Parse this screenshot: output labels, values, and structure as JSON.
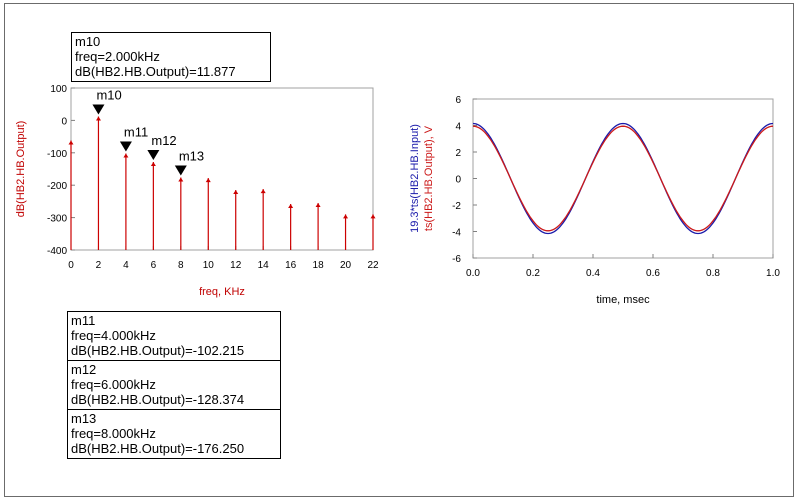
{
  "markers": [
    {
      "name": "m10",
      "line1": "freq=2.000kHz",
      "line2_prefix": "dB(HB2.HB.Output)=",
      "line2_value": "11.877"
    },
    {
      "name": "m11",
      "line1": "freq=4.000kHz",
      "line2_prefix": "dB(HB2.HB.Output)=",
      "line2_value": "-102.215"
    },
    {
      "name": "m12",
      "line1": "freq=6.000kHz",
      "line2_prefix": "dB(HB2.HB.Output)=",
      "line2_value": "-128.374"
    },
    {
      "name": "m13",
      "line1": "freq=8.000kHz",
      "line2_prefix": "dB(HB2.HB.Output)=",
      "line2_value": "-176.250"
    }
  ],
  "chart_data": [
    {
      "type": "bar",
      "xlabel": "freq, KHz",
      "ylabel": "dB(HB2.HB.Output)",
      "xlim": [
        0,
        22
      ],
      "ylim": [
        -400,
        100
      ],
      "x_ticks": [
        "0",
        "2",
        "4",
        "6",
        "8",
        "10",
        "12",
        "14",
        "16",
        "18",
        "20",
        "22"
      ],
      "y_ticks": [
        "100",
        "0",
        "-100",
        "-200",
        "-300",
        "-400"
      ],
      "x": [
        0,
        2,
        4,
        6,
        8,
        10,
        12,
        14,
        16,
        18,
        20,
        22
      ],
      "values": [
        -62,
        11.877,
        -102.215,
        -128.374,
        -176.25,
        -178,
        -215,
        -212,
        -258,
        -255,
        -290,
        -290
      ],
      "markers": [
        {
          "label": "m10",
          "x": 2,
          "y": 11.877
        },
        {
          "label": "m11",
          "x": 4,
          "y": -102.215
        },
        {
          "label": "m12",
          "x": 6,
          "y": -128.374
        },
        {
          "label": "m13",
          "x": 8,
          "y": -176.25
        }
      ],
      "color": "#cc0000"
    },
    {
      "type": "line",
      "xlabel": "time, msec",
      "ylabel_lines": [
        "19.3*ts(HB2.HB.Input)",
        "ts(HB2.HB.Output), V"
      ],
      "xlim": [
        0,
        1
      ],
      "ylim": [
        -6,
        6
      ],
      "x_ticks": [
        "0.0",
        "0.2",
        "0.4",
        "0.6",
        "0.8",
        "1.0"
      ],
      "y_ticks": [
        "6",
        "4",
        "2",
        "0",
        "-2",
        "-4",
        "-6"
      ],
      "series": [
        {
          "name": "19.3*ts(HB2.HB.Input)",
          "color": "#1a1aaa",
          "amplitude": 4.15,
          "period": 0.5
        },
        {
          "name": "ts(HB2.HB.Output), V",
          "color": "#cc1a1a",
          "amplitude": 3.95,
          "period": 0.5
        }
      ]
    }
  ]
}
